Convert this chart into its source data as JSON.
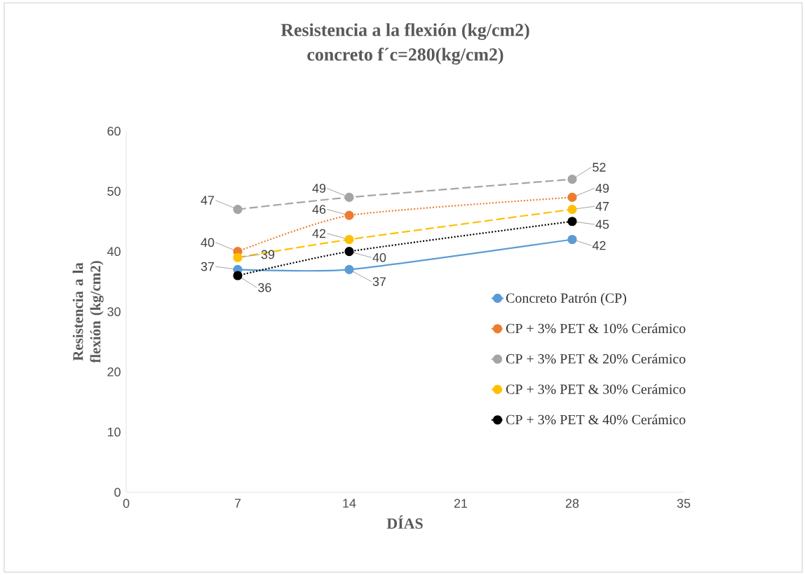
{
  "chart_data": {
    "type": "line",
    "title": "Resistencia a la flexión (kg/cm2)",
    "subtitle": "concreto f´c=280(kg/cm2)",
    "xlabel": "DÍAS",
    "ylabel": "Resistencia a la flexión (kg/cm2)",
    "x": [
      7,
      14,
      28
    ],
    "series": [
      {
        "name": "Concreto Patrón (CP)",
        "color": "#5b9bd5",
        "line_style": "solid",
        "values": [
          37,
          37,
          42
        ]
      },
      {
        "name": "CP + 3% PET & 10% Cerámico",
        "color": "#ed7d31",
        "line_style": "dotted",
        "values": [
          40,
          46,
          49
        ]
      },
      {
        "name": "CP + 3% PET & 20% Cerámico",
        "color": "#a5a5a5",
        "line_style": "dashed",
        "values": [
          47,
          49,
          52
        ]
      },
      {
        "name": "CP + 3% PET & 30% Cerámico",
        "color": "#ffc000",
        "line_style": "dashed",
        "values": [
          39,
          42,
          47
        ]
      },
      {
        "name": "CP + 3% PET & 40% Cerámico",
        "color": "#000000",
        "line_style": "dotted",
        "values": [
          36,
          40,
          45
        ]
      }
    ],
    "xlim": [
      0,
      35
    ],
    "xticks": [
      0,
      7,
      14,
      21,
      28,
      35
    ],
    "ylim": [
      0,
      60
    ],
    "yticks": [
      0,
      10,
      20,
      30,
      40,
      50,
      60
    ],
    "marker": "circle",
    "legend": "right",
    "grid": false,
    "data_labels": true
  }
}
